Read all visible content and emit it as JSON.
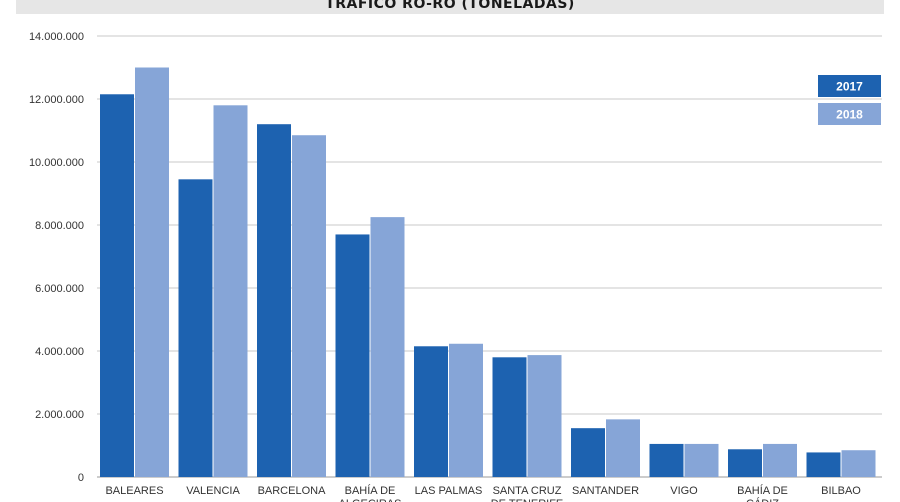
{
  "chart_data": {
    "type": "bar",
    "title": "TRÁFICO RO-RO (TONELADAS)",
    "categories": [
      "BALEARES",
      "VALENCIA",
      "BARCELONA",
      "BAHÍA DE ALGECIRAS",
      "LAS PALMAS",
      "SANTA CRUZ DE TENERIFE",
      "SANTANDER",
      "VIGO",
      "BAHÍA DE CÁDIZ",
      "BILBAO"
    ],
    "series": [
      {
        "name": "2017",
        "color": "#1d62b0",
        "values": [
          12150000,
          9450000,
          11200000,
          7700000,
          4150000,
          3800000,
          1550000,
          1050000,
          880000,
          780000
        ]
      },
      {
        "name": "2018",
        "color": "#86a5d7",
        "values": [
          13000000,
          11800000,
          10850000,
          8250000,
          4230000,
          3870000,
          1830000,
          1050000,
          1050000,
          850000
        ]
      }
    ],
    "ylim": [
      0,
      14000000
    ],
    "yticks": [
      0,
      2000000,
      4000000,
      6000000,
      8000000,
      10000000,
      12000000,
      14000000
    ],
    "ytick_labels": [
      "0",
      "2.000.000",
      "4.000.000",
      "6.000.000",
      "8.000.000",
      "10.000.000",
      "12.000.000",
      "14.000.000"
    ],
    "legend_position": "top-right",
    "grid": true
  }
}
